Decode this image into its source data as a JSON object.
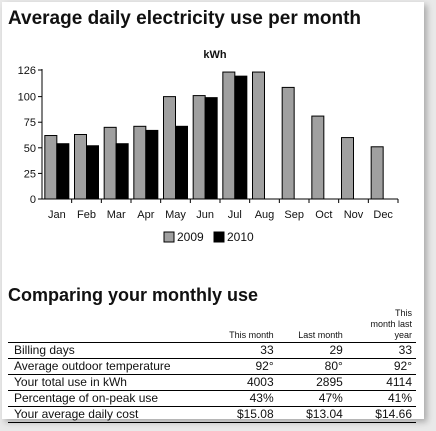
{
  "title": "Average daily electricity use per month",
  "chart_data": {
    "type": "bar",
    "subtitle": "kWh",
    "categories": [
      "Jan",
      "Feb",
      "Mar",
      "Apr",
      "May",
      "Jun",
      "Jul",
      "Aug",
      "Sep",
      "Oct",
      "Nov",
      "Dec"
    ],
    "series": [
      {
        "name": "2009",
        "color": "#a0a0a0",
        "values": [
          62,
          63,
          70,
          71,
          100,
          101,
          124,
          124,
          109,
          81,
          60,
          51
        ]
      },
      {
        "name": "2010",
        "color": "#000000",
        "values": [
          54,
          52,
          54,
          67,
          71,
          99,
          120,
          null,
          null,
          null,
          null,
          null
        ]
      }
    ],
    "ylim": [
      0,
      126
    ],
    "yticks": [
      0,
      25,
      50,
      75,
      100,
      126
    ],
    "legend": "bottom-center",
    "grid": false
  },
  "comparison": {
    "title": "Comparing your monthly use",
    "headers": [
      "",
      "This month",
      "Last month",
      "This month last year"
    ],
    "rows": [
      {
        "label": "Billing days",
        "this_month": "33",
        "last_month": "29",
        "last_year": "33"
      },
      {
        "label": "Average outdoor temperature",
        "this_month": "92°",
        "last_month": "80°",
        "last_year": "92°"
      },
      {
        "label": "Your total use in kWh",
        "this_month": "4003",
        "last_month": "2895",
        "last_year": "4114"
      },
      {
        "label": "Percentage of on-peak use",
        "this_month": "43%",
        "last_month": "47%",
        "last_year": "41%"
      },
      {
        "label": "Your average daily cost",
        "this_month": "$15.08",
        "last_month": "$13.04",
        "last_year": "$14.66"
      }
    ]
  }
}
